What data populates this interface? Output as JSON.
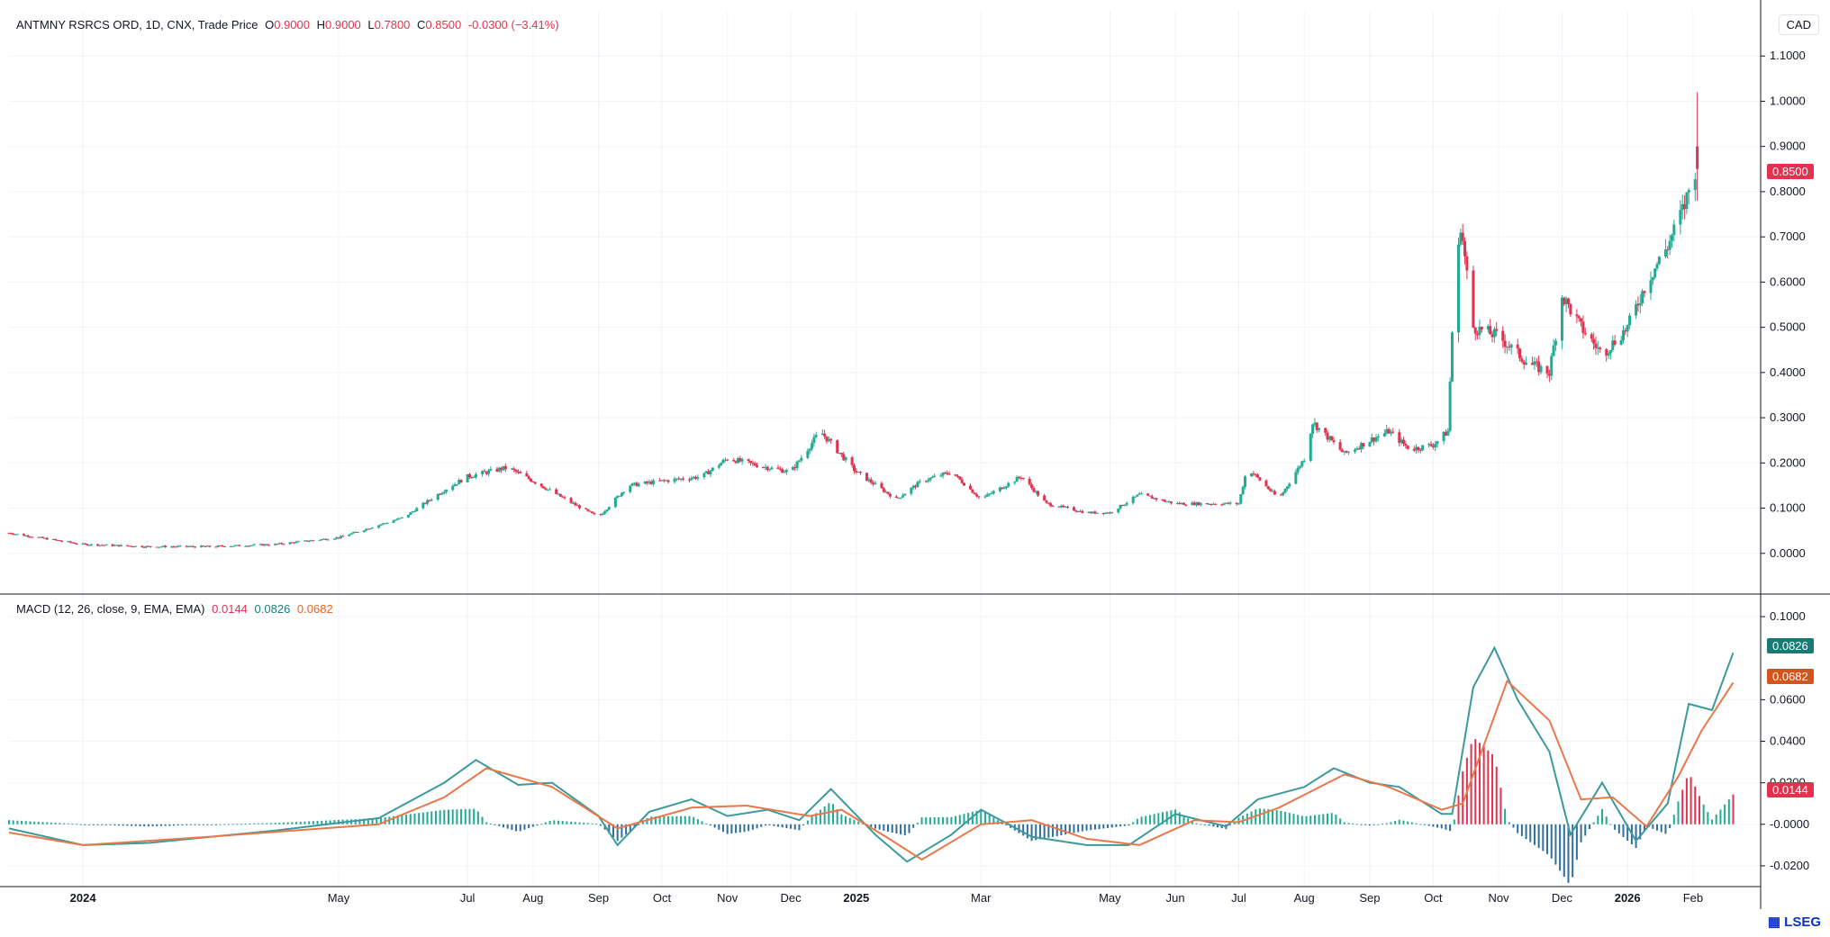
{
  "header": {
    "instrument": "ANTMNY RSRCS ORD, 1D, CNX, Trade Price",
    "o_label": "O",
    "o_value": "0.9000",
    "h_label": "H",
    "h_value": "0.9000",
    "l_label": "L",
    "l_value": "0.7800",
    "c_label": "C",
    "c_value": "0.8500",
    "change": "-0.0300 (−3.41%)"
  },
  "currency": "CAD",
  "macd_legend": {
    "title": "MACD (12, 26, close, 9, EMA, EMA)",
    "hist": "0.0144",
    "macd": "0.0826",
    "signal": "0.0682"
  },
  "price_tag": "0.8500",
  "macd_tags": {
    "macd": "0.0826",
    "signal": "0.0682",
    "hist": "0.0144"
  },
  "brand": "LSEG",
  "colors": {
    "up": "#22ab94",
    "down": "#e3324f",
    "macd": "#3b9a9c",
    "signal": "#e8784a",
    "hist_up": "#22ab94",
    "hist_down": "#e3324f",
    "hist_neg": "#2e6f9e"
  },
  "chart_data": [
    {
      "type": "candlestick",
      "title": "ANTMNY RSRCS ORD, 1D, CNX, Trade Price",
      "ylim": [
        -0.09,
        1.2
      ],
      "y_ticks": [
        "1.1000",
        "1.0000",
        "0.9000",
        "0.8000",
        "0.7000",
        "0.6000",
        "0.5000",
        "0.4000",
        "0.3000",
        "0.2000",
        "0.1000",
        "0.0000"
      ],
      "x_ticks": [
        "2024",
        "May",
        "Jul",
        "Aug",
        "Sep",
        "Oct",
        "Nov",
        "Dec",
        "2025",
        "Mar",
        "May",
        "Jun",
        "Jul",
        "Aug",
        "Sep",
        "Oct",
        "Nov",
        "Dec",
        "2026",
        "Feb"
      ],
      "close_series_approx": [
        [
          "2023-11-27",
          0.045
        ],
        [
          "2024-01-01",
          0.02
        ],
        [
          "2024-02-01",
          0.015
        ],
        [
          "2024-03-01",
          0.015
        ],
        [
          "2024-04-01",
          0.02
        ],
        [
          "2024-05-01",
          0.035
        ],
        [
          "2024-06-01",
          0.08
        ],
        [
          "2024-06-20",
          0.14
        ],
        [
          "2024-07-01",
          0.17
        ],
        [
          "2024-07-20",
          0.19
        ],
        [
          "2024-08-01",
          0.16
        ],
        [
          "2024-08-20",
          0.11
        ],
        [
          "2024-09-01",
          0.08
        ],
        [
          "2024-09-15",
          0.15
        ],
        [
          "2024-10-01",
          0.16
        ],
        [
          "2024-10-20",
          0.17
        ],
        [
          "2024-11-01",
          0.21
        ],
        [
          "2024-11-20",
          0.19
        ],
        [
          "2024-12-01",
          0.18
        ],
        [
          "2024-12-15",
          0.27
        ],
        [
          "2025-01-01",
          0.18
        ],
        [
          "2025-01-20",
          0.12
        ],
        [
          "2025-02-01",
          0.16
        ],
        [
          "2025-02-15",
          0.18
        ],
        [
          "2025-03-01",
          0.12
        ],
        [
          "2025-03-20",
          0.17
        ],
        [
          "2025-04-01",
          0.11
        ],
        [
          "2025-04-20",
          0.09
        ],
        [
          "2025-05-01",
          0.09
        ],
        [
          "2025-05-15",
          0.13
        ],
        [
          "2025-06-01",
          0.11
        ],
        [
          "2025-06-20",
          0.11
        ],
        [
          "2025-07-01",
          0.11
        ],
        [
          "2025-07-05",
          0.19
        ],
        [
          "2025-07-20",
          0.12
        ],
        [
          "2025-08-01",
          0.21
        ],
        [
          "2025-08-05",
          0.29
        ],
        [
          "2025-08-20",
          0.22
        ],
        [
          "2025-09-01",
          0.25
        ],
        [
          "2025-09-10",
          0.27
        ],
        [
          "2025-09-20",
          0.23
        ],
        [
          "2025-10-01",
          0.24
        ],
        [
          "2025-10-08",
          0.27
        ],
        [
          "2025-10-10",
          0.49
        ],
        [
          "2025-10-14",
          0.73
        ],
        [
          "2025-10-20",
          0.5
        ],
        [
          "2025-11-01",
          0.48
        ],
        [
          "2025-11-15",
          0.42
        ],
        [
          "2025-11-25",
          0.4
        ],
        [
          "2025-12-01",
          0.57
        ],
        [
          "2025-12-10",
          0.5
        ],
        [
          "2025-12-20",
          0.44
        ],
        [
          "2026-01-01",
          0.5
        ],
        [
          "2026-01-10",
          0.6
        ],
        [
          "2026-01-20",
          0.68
        ],
        [
          "2026-01-28",
          0.77
        ],
        [
          "2026-02-02",
          0.85
        ]
      ],
      "last": {
        "open": 0.9,
        "high": 0.9,
        "low": 0.78,
        "close": 0.85
      }
    },
    {
      "type": "line+bar",
      "title": "MACD (12, 26, close, 9, EMA, EMA)",
      "ylim": [
        -0.03,
        0.11
      ],
      "y_ticks": [
        "0.1000",
        "0.0600",
        "0.0400",
        "0.0200",
        "-0.0000",
        "-0.0200"
      ],
      "series": [
        {
          "name": "MACD",
          "points": [
            [
              "2023-11-27",
              -0.002
            ],
            [
              "2024-01-01",
              -0.01
            ],
            [
              "2024-02-01",
              -0.009
            ],
            [
              "2024-04-01",
              -0.003
            ],
            [
              "2024-05-20",
              0.003
            ],
            [
              "2024-06-20",
              0.02
            ],
            [
              "2024-07-05",
              0.031
            ],
            [
              "2024-07-25",
              0.019
            ],
            [
              "2024-08-10",
              0.02
            ],
            [
              "2024-09-01",
              0.004
            ],
            [
              "2024-09-10",
              -0.01
            ],
            [
              "2024-09-25",
              0.006
            ],
            [
              "2024-10-15",
              0.012
            ],
            [
              "2024-11-01",
              0.004
            ],
            [
              "2024-11-20",
              0.007
            ],
            [
              "2024-12-05",
              0.002
            ],
            [
              "2024-12-20",
              0.017
            ],
            [
              "2025-01-10",
              -0.005
            ],
            [
              "2025-01-25",
              -0.018
            ],
            [
              "2025-02-15",
              -0.005
            ],
            [
              "2025-03-01",
              0.007
            ],
            [
              "2025-03-25",
              -0.006
            ],
            [
              "2025-04-20",
              -0.01
            ],
            [
              "2025-05-10",
              -0.01
            ],
            [
              "2025-06-01",
              0.005
            ],
            [
              "2025-06-25",
              -0.001
            ],
            [
              "2025-07-10",
              0.012
            ],
            [
              "2025-08-01",
              0.018
            ],
            [
              "2025-08-15",
              0.027
            ],
            [
              "2025-09-01",
              0.02
            ],
            [
              "2025-09-15",
              0.018
            ],
            [
              "2025-10-05",
              0.005
            ],
            [
              "2025-10-10",
              0.005
            ],
            [
              "2025-10-20",
              0.066
            ],
            [
              "2025-10-30",
              0.085
            ],
            [
              "2025-11-10",
              0.06
            ],
            [
              "2025-11-25",
              0.035
            ],
            [
              "2025-12-05",
              -0.005
            ],
            [
              "2025-12-20",
              0.02
            ],
            [
              "2026-01-05",
              -0.008
            ],
            [
              "2026-01-20",
              0.01
            ],
            [
              "2026-01-30",
              0.058
            ],
            [
              "2026-02-10",
              0.055
            ],
            [
              "2026-02-20",
              0.0826
            ]
          ]
        },
        {
          "name": "Signal",
          "points": [
            [
              "2023-11-27",
              -0.004
            ],
            [
              "2024-01-01",
              -0.01
            ],
            [
              "2024-03-01",
              -0.006
            ],
            [
              "2024-05-20",
              0.0
            ],
            [
              "2024-06-20",
              0.013
            ],
            [
              "2024-07-10",
              0.027
            ],
            [
              "2024-08-10",
              0.018
            ],
            [
              "2024-09-10",
              -0.002
            ],
            [
              "2024-10-15",
              0.008
            ],
            [
              "2024-11-10",
              0.009
            ],
            [
              "2024-12-10",
              0.004
            ],
            [
              "2024-12-25",
              0.007
            ],
            [
              "2025-01-15",
              -0.006
            ],
            [
              "2025-02-01",
              -0.017
            ],
            [
              "2025-03-01",
              0.0
            ],
            [
              "2025-03-25",
              0.002
            ],
            [
              "2025-04-20",
              -0.007
            ],
            [
              "2025-05-15",
              -0.01
            ],
            [
              "2025-06-10",
              0.002
            ],
            [
              "2025-07-01",
              0.001
            ],
            [
              "2025-07-20",
              0.008
            ],
            [
              "2025-08-20",
              0.024
            ],
            [
              "2025-09-10",
              0.018
            ],
            [
              "2025-10-05",
              0.007
            ],
            [
              "2025-10-15",
              0.01
            ],
            [
              "2025-11-05",
              0.069
            ],
            [
              "2025-11-25",
              0.05
            ],
            [
              "2025-12-10",
              0.012
            ],
            [
              "2025-12-25",
              0.013
            ],
            [
              "2026-01-10",
              -0.001
            ],
            [
              "2026-01-25",
              0.023
            ],
            [
              "2026-02-05",
              0.045
            ],
            [
              "2026-02-20",
              0.0682
            ]
          ]
        }
      ],
      "histogram_last": 0.0144
    }
  ]
}
